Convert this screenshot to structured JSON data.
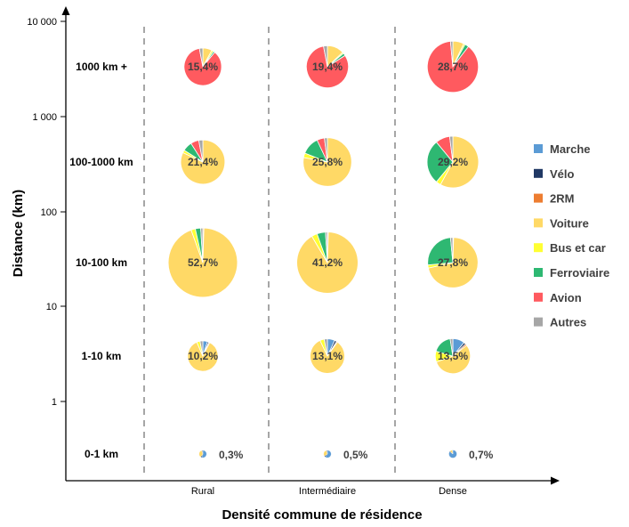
{
  "chart_data": {
    "type": "pie",
    "xlabel": "Densité commune de résidence",
    "ylabel": "Distance (km)",
    "y_scale": "log",
    "y_ticks": [
      "10 000",
      "1 000",
      "100",
      "10",
      "1"
    ],
    "columns": [
      "Rural",
      "Intermédiaire",
      "Dense"
    ],
    "rows": [
      "1000 km +",
      "100-1000 km",
      "10-100 km",
      "1-10 km",
      "0-1 km"
    ],
    "legend_position": "right",
    "legend": [
      {
        "name": "Marche",
        "color": "#5B9BD5"
      },
      {
        "name": "Vélo",
        "color": "#203864"
      },
      {
        "name": "2RM",
        "color": "#ED7D31"
      },
      {
        "name": "Voiture",
        "color": "#FFD966"
      },
      {
        "name": "Bus et car",
        "color": "#FFFF33"
      },
      {
        "name": "Ferroviaire",
        "color": "#2EB872"
      },
      {
        "name": "Avion",
        "color": "#FF5A5F"
      },
      {
        "name": "Autres",
        "color": "#A6A6A6"
      }
    ],
    "pies": [
      {
        "row": "1000 km +",
        "column": "Rural",
        "label": "15,4%",
        "share": 15.4,
        "slices": {
          "Marche": 0,
          "Vélo": 0,
          "2RM": 0,
          "Voiture": 8,
          "Bus et car": 1.5,
          "Ferroviaire": 1.5,
          "Avion": 86,
          "Autres": 3
        }
      },
      {
        "row": "1000 km +",
        "column": "Intermédiaire",
        "label": "19,4%",
        "share": 19.4,
        "slices": {
          "Marche": 0,
          "Vélo": 0,
          "2RM": 0,
          "Voiture": 13,
          "Bus et car": 1,
          "Ferroviaire": 2,
          "Avion": 81,
          "Autres": 3
        }
      },
      {
        "row": "1000 km +",
        "column": "Dense",
        "label": "28,7%",
        "share": 28.7,
        "slices": {
          "Marche": 0,
          "Vélo": 0,
          "2RM": 0,
          "Voiture": 7,
          "Bus et car": 1,
          "Ferroviaire": 2.5,
          "Avion": 88,
          "Autres": 1.5
        }
      },
      {
        "row": "100-1000 km",
        "column": "Rural",
        "label": "21,4%",
        "share": 21.4,
        "slices": {
          "Marche": 0,
          "Vélo": 0,
          "2RM": 0,
          "Voiture": 82,
          "Bus et car": 2,
          "Ferroviaire": 7,
          "Avion": 6,
          "Autres": 3
        }
      },
      {
        "row": "100-1000 km",
        "column": "Intermédiaire",
        "label": "25,8%",
        "share": 25.8,
        "slices": {
          "Marche": 0,
          "Vélo": 0,
          "2RM": 0,
          "Voiture": 78,
          "Bus et car": 3,
          "Ferroviaire": 12,
          "Avion": 5,
          "Autres": 2
        }
      },
      {
        "row": "100-1000 km",
        "column": "Dense",
        "label": "29,2%",
        "share": 29.2,
        "slices": {
          "Marche": 0,
          "Vélo": 0,
          "2RM": 0,
          "Voiture": 58,
          "Bus et car": 3,
          "Ferroviaire": 28,
          "Avion": 9,
          "Autres": 2
        }
      },
      {
        "row": "10-100 km",
        "column": "Rural",
        "label": "52,7%",
        "share": 52.7,
        "slices": {
          "Marche": 0,
          "Vélo": 0,
          "2RM": 0.5,
          "Voiture": 94,
          "Bus et car": 2,
          "Ferroviaire": 2.5,
          "Avion": 0,
          "Autres": 1
        }
      },
      {
        "row": "10-100 km",
        "column": "Intermédiaire",
        "label": "41,2%",
        "share": 41.2,
        "slices": {
          "Marche": 0,
          "Vélo": 0,
          "2RM": 0.5,
          "Voiture": 91,
          "Bus et car": 3,
          "Ferroviaire": 4.5,
          "Avion": 0,
          "Autres": 1
        }
      },
      {
        "row": "10-100 km",
        "column": "Dense",
        "label": "27,8%",
        "share": 27.8,
        "slices": {
          "Marche": 0,
          "Vélo": 0,
          "2RM": 0.5,
          "Voiture": 71,
          "Bus et car": 2,
          "Ferroviaire": 25,
          "Avion": 0,
          "Autres": 1.5
        }
      },
      {
        "row": "1-10 km",
        "column": "Rural",
        "label": "10,2%",
        "share": 10.2,
        "slices": {
          "Marche": 5,
          "Vélo": 1.5,
          "2RM": 1,
          "Voiture": 86,
          "Bus et car": 3.5,
          "Ferroviaire": 0,
          "Avion": 0,
          "Autres": 3
        }
      },
      {
        "row": "1-10 km",
        "column": "Intermédiaire",
        "label": "13,1%",
        "share": 13.1,
        "slices": {
          "Marche": 7,
          "Vélo": 2,
          "2RM": 1,
          "Voiture": 83,
          "Bus et car": 4,
          "Ferroviaire": 0,
          "Avion": 0,
          "Autres": 3
        }
      },
      {
        "row": "1-10 km",
        "column": "Dense",
        "label": "13,5%",
        "share": 13.5,
        "slices": {
          "Marche": 11,
          "Vélo": 2,
          "2RM": 1.5,
          "Voiture": 55,
          "Bus et car": 10,
          "Ferroviaire": 18,
          "Avion": 0,
          "Autres": 2.5
        }
      },
      {
        "row": "0-1 km",
        "column": "Rural",
        "label": "0,3%",
        "share": 0.3,
        "slices": {
          "Marche": 55,
          "Vélo": 5,
          "2RM": 0,
          "Voiture": 35,
          "Bus et car": 0,
          "Ferroviaire": 0,
          "Avion": 0,
          "Autres": 5
        }
      },
      {
        "row": "0-1 km",
        "column": "Intermédiaire",
        "label": "0,5%",
        "share": 0.5,
        "slices": {
          "Marche": 60,
          "Vélo": 5,
          "2RM": 0,
          "Voiture": 30,
          "Bus et car": 0,
          "Ferroviaire": 0,
          "Avion": 0,
          "Autres": 5
        }
      },
      {
        "row": "0-1 km",
        "column": "Dense",
        "label": "0,7%",
        "share": 0.7,
        "slices": {
          "Marche": 85,
          "Vélo": 3,
          "2RM": 0,
          "Voiture": 10,
          "Bus et car": 0,
          "Ferroviaire": 0,
          "Avion": 0,
          "Autres": 2
        }
      }
    ]
  }
}
